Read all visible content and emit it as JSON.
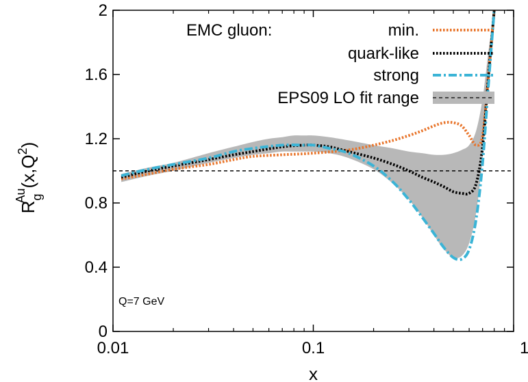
{
  "chart_data": {
    "type": "line",
    "x_scale": "log",
    "xlim": [
      0.01,
      1
    ],
    "ylim": [
      0,
      2
    ],
    "xlabel": "x",
    "ylabel_parts": {
      "base": "R",
      "sub": "g",
      "sup": "Au",
      "args": "(x,Q",
      "args_sup": "2",
      "args_end": ")"
    },
    "x_ticks": [
      {
        "value": 0.01,
        "label": "0.01"
      },
      {
        "value": 0.1,
        "label": "0.1"
      },
      {
        "value": 1,
        "label": "1"
      }
    ],
    "y_ticks": [
      {
        "value": 0,
        "label": "0"
      },
      {
        "value": 0.4,
        "label": "0.4"
      },
      {
        "value": 0.8,
        "label": "0.8"
      },
      {
        "value": 1.2,
        "label": "1.2"
      },
      {
        "value": 1.6,
        "label": "1.6"
      },
      {
        "value": 2,
        "label": "2"
      }
    ],
    "reference_line": {
      "y": 1.0,
      "style": "dashed",
      "color": "#000000"
    },
    "annotation": "Q=7 GeV",
    "legend_title": "EMC gluon:",
    "legend_position": "top-right",
    "band": {
      "name": "EPS09 LO fit range",
      "color": "#b8b8b8",
      "x": [
        0.011,
        0.015,
        0.02,
        0.03,
        0.04,
        0.05,
        0.06,
        0.07,
        0.08,
        0.09,
        0.1,
        0.12,
        0.15,
        0.2,
        0.25,
        0.3,
        0.35,
        0.4,
        0.45,
        0.5,
        0.55,
        0.6,
        0.65,
        0.7,
        0.75,
        0.8
      ],
      "lower": [
        0.93,
        0.97,
        1.0,
        1.05,
        1.08,
        1.1,
        1.11,
        1.12,
        1.12,
        1.12,
        1.12,
        1.11,
        1.08,
        1.01,
        0.92,
        0.82,
        0.71,
        0.6,
        0.51,
        0.46,
        0.47,
        0.55,
        0.74,
        1.08,
        1.55,
        2.0
      ],
      "upper": [
        0.98,
        1.02,
        1.05,
        1.11,
        1.15,
        1.18,
        1.2,
        1.21,
        1.22,
        1.22,
        1.22,
        1.21,
        1.19,
        1.16,
        1.14,
        1.12,
        1.11,
        1.1,
        1.1,
        1.11,
        1.13,
        1.16,
        1.25,
        1.45,
        1.75,
        2.0
      ]
    },
    "series": [
      {
        "name": "min.",
        "color": "#e8742a",
        "style": "dotted",
        "x": [
          0.011,
          0.015,
          0.02,
          0.03,
          0.04,
          0.05,
          0.07,
          0.1,
          0.15,
          0.2,
          0.25,
          0.3,
          0.35,
          0.4,
          0.45,
          0.5,
          0.55,
          0.6,
          0.65,
          0.7,
          0.75,
          0.8
        ],
        "y": [
          0.95,
          0.98,
          1.01,
          1.04,
          1.07,
          1.09,
          1.1,
          1.11,
          1.13,
          1.16,
          1.19,
          1.22,
          1.25,
          1.28,
          1.3,
          1.3,
          1.28,
          1.22,
          1.16,
          1.22,
          1.6,
          2.0
        ]
      },
      {
        "name": "quark-like",
        "color": "#000000",
        "style": "dotted",
        "x": [
          0.011,
          0.015,
          0.02,
          0.03,
          0.04,
          0.05,
          0.07,
          0.09,
          0.1,
          0.12,
          0.15,
          0.2,
          0.25,
          0.3,
          0.35,
          0.4,
          0.45,
          0.5,
          0.55,
          0.6,
          0.65,
          0.7,
          0.75,
          0.8
        ],
        "y": [
          0.96,
          1.0,
          1.03,
          1.07,
          1.1,
          1.12,
          1.15,
          1.16,
          1.16,
          1.15,
          1.12,
          1.08,
          1.04,
          1.0,
          0.96,
          0.93,
          0.9,
          0.87,
          0.86,
          0.86,
          0.92,
          1.15,
          1.6,
          2.0
        ]
      },
      {
        "name": "strong",
        "color": "#3bb4d6",
        "style": "dash-dot",
        "x": [
          0.011,
          0.015,
          0.02,
          0.03,
          0.04,
          0.05,
          0.07,
          0.09,
          0.1,
          0.12,
          0.15,
          0.2,
          0.25,
          0.3,
          0.35,
          0.4,
          0.45,
          0.5,
          0.55,
          0.6,
          0.65,
          0.7,
          0.75,
          0.8
        ],
        "y": [
          0.97,
          1.01,
          1.04,
          1.08,
          1.12,
          1.14,
          1.16,
          1.16,
          1.16,
          1.14,
          1.11,
          1.03,
          0.93,
          0.82,
          0.71,
          0.61,
          0.52,
          0.46,
          0.45,
          0.51,
          0.7,
          1.05,
          1.55,
          2.0
        ]
      }
    ]
  }
}
